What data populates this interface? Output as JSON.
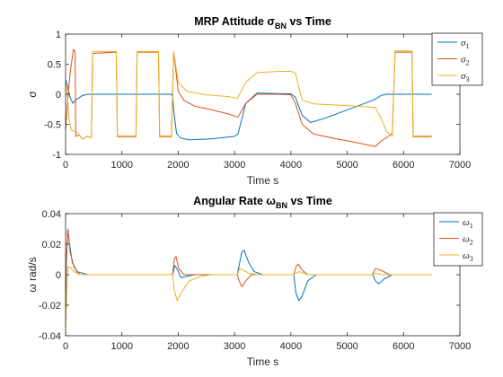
{
  "chart_data": [
    {
      "type": "line",
      "title": "MRP Attitude σ",
      "title_sub": "BN",
      "title_tail": " vs Time",
      "xlabel": "Time s",
      "ylabel": "σ",
      "xlim": [
        0,
        7000
      ],
      "ylim": [
        -1,
        1
      ],
      "xticks": [
        "0",
        "1000",
        "2000",
        "3000",
        "4000",
        "5000",
        "6000",
        "7000"
      ],
      "yticks": [
        "1",
        "0.5",
        "0",
        "-0.5",
        "-1"
      ],
      "ytick_values": [
        1,
        0.5,
        0,
        -0.5,
        -1
      ],
      "xtick_values": [
        0,
        1000,
        2000,
        3000,
        4000,
        5000,
        6000,
        7000
      ],
      "grid": false,
      "legend_position": "top-right-outside",
      "series": [
        {
          "name": "σ",
          "name_sub": "1",
          "color": "#0072BD",
          "points": [
            [
              0,
              0.25
            ],
            [
              40,
              0.12
            ],
            [
              80,
              -0.05
            ],
            [
              130,
              -0.15
            ],
            [
              200,
              -0.08
            ],
            [
              300,
              -0.02
            ],
            [
              400,
              0
            ],
            [
              1000,
              0
            ],
            [
              1880,
              0
            ],
            [
              1900,
              -0.05
            ],
            [
              1930,
              -0.35
            ],
            [
              1970,
              -0.65
            ],
            [
              2050,
              -0.73
            ],
            [
              2200,
              -0.76
            ],
            [
              2600,
              -0.74
            ],
            [
              3000,
              -0.7
            ],
            [
              3060,
              -0.66
            ],
            [
              3200,
              -0.15
            ],
            [
              3400,
              0.02
            ],
            [
              3800,
              0.01
            ],
            [
              4000,
              0.01
            ],
            [
              4080,
              -0.05
            ],
            [
              4200,
              -0.35
            ],
            [
              4350,
              -0.47
            ],
            [
              4600,
              -0.4
            ],
            [
              5000,
              -0.26
            ],
            [
              5400,
              -0.12
            ],
            [
              5500,
              -0.08
            ],
            [
              5600,
              -0.02
            ],
            [
              5700,
              0
            ],
            [
              6500,
              0
            ]
          ]
        },
        {
          "name": "σ",
          "name_sub": "2",
          "color": "#D95319",
          "points": [
            [
              0,
              -0.6
            ],
            [
              30,
              -0.2
            ],
            [
              80,
              0.35
            ],
            [
              140,
              0.75
            ],
            [
              170,
              0.7
            ],
            [
              180,
              -0.7
            ],
            [
              250,
              -0.68
            ],
            [
              300,
              -0.75
            ],
            [
              380,
              -0.7
            ],
            [
              460,
              -0.72
            ],
            [
              480,
              0.68
            ],
            [
              900,
              0.7
            ],
            [
              920,
              -0.7
            ],
            [
              1250,
              -0.7
            ],
            [
              1270,
              0.7
            ],
            [
              1650,
              0.7
            ],
            [
              1670,
              -0.7
            ],
            [
              1880,
              -0.7
            ],
            [
              1920,
              0.7
            ],
            [
              2000,
              0.05
            ],
            [
              2100,
              -0.1
            ],
            [
              2300,
              -0.2
            ],
            [
              2600,
              -0.26
            ],
            [
              2900,
              -0.33
            ],
            [
              3060,
              -0.38
            ],
            [
              3200,
              -0.15
            ],
            [
              3400,
              0
            ],
            [
              3800,
              0
            ],
            [
              4000,
              -0.01
            ],
            [
              4080,
              -0.15
            ],
            [
              4200,
              -0.5
            ],
            [
              4400,
              -0.66
            ],
            [
              4800,
              -0.74
            ],
            [
              5200,
              -0.81
            ],
            [
              5500,
              -0.87
            ],
            [
              5600,
              -0.78
            ],
            [
              5700,
              -0.72
            ],
            [
              5800,
              -0.65
            ],
            [
              5850,
              0.7
            ],
            [
              6150,
              0.7
            ],
            [
              6170,
              -0.7
            ],
            [
              6500,
              -0.7
            ]
          ]
        },
        {
          "name": "σ",
          "name_sub": "3",
          "color": "#EDB120",
          "points": [
            [
              0,
              0.2
            ],
            [
              30,
              0
            ],
            [
              60,
              -0.4
            ],
            [
              100,
              -0.6
            ],
            [
              180,
              -0.62
            ],
            [
              250,
              -0.68
            ],
            [
              300,
              -0.75
            ],
            [
              380,
              -0.7
            ],
            [
              460,
              -0.72
            ],
            [
              480,
              0.71
            ],
            [
              900,
              0.71
            ],
            [
              920,
              -0.71
            ],
            [
              1250,
              -0.71
            ],
            [
              1270,
              0.71
            ],
            [
              1650,
              0.71
            ],
            [
              1670,
              -0.71
            ],
            [
              1880,
              -0.71
            ],
            [
              1920,
              0.71
            ],
            [
              2000,
              0.2
            ],
            [
              2150,
              0.05
            ],
            [
              2500,
              -0.01
            ],
            [
              2900,
              -0.04
            ],
            [
              3050,
              -0.07
            ],
            [
              3200,
              0.2
            ],
            [
              3400,
              0.36
            ],
            [
              3800,
              0.38
            ],
            [
              4000,
              0.38
            ],
            [
              4080,
              0.35
            ],
            [
              4200,
              -0.1
            ],
            [
              4400,
              -0.16
            ],
            [
              4800,
              -0.18
            ],
            [
              5200,
              -0.2
            ],
            [
              5500,
              -0.22
            ],
            [
              5600,
              -0.4
            ],
            [
              5700,
              -0.62
            ],
            [
              5800,
              -0.7
            ],
            [
              5850,
              0.72
            ],
            [
              6150,
              0.72
            ],
            [
              6170,
              -0.71
            ],
            [
              6500,
              -0.71
            ]
          ]
        }
      ]
    },
    {
      "type": "line",
      "title": "Angular Rate ω",
      "title_sub": "BN",
      "title_tail": " vs Time",
      "xlabel": "Time s",
      "ylabel": "ω rad/s",
      "xlim": [
        0,
        7000
      ],
      "ylim": [
        -0.04,
        0.04
      ],
      "xticks": [
        "0",
        "1000",
        "2000",
        "3000",
        "4000",
        "5000",
        "6000",
        "7000"
      ],
      "yticks": [
        "0.04",
        "0.02",
        "0",
        "-0.02",
        "-0.04"
      ],
      "ytick_values": [
        0.04,
        0.02,
        0,
        -0.02,
        -0.04
      ],
      "xtick_values": [
        0,
        1000,
        2000,
        3000,
        4000,
        5000,
        6000,
        7000
      ],
      "grid": false,
      "legend_position": "top-right-outside",
      "series": [
        {
          "name": "ω",
          "name_sub": "1",
          "color": "#0072BD",
          "points": [
            [
              0,
              -0.02
            ],
            [
              15,
              0.008
            ],
            [
              40,
              0.03
            ],
            [
              70,
              0.02
            ],
            [
              120,
              0.008
            ],
            [
              200,
              0.002
            ],
            [
              400,
              0
            ],
            [
              1900,
              0
            ],
            [
              1940,
              0.006
            ],
            [
              1990,
              0.003
            ],
            [
              2050,
              -0.002
            ],
            [
              2150,
              -0.001
            ],
            [
              2300,
              0
            ],
            [
              3050,
              0
            ],
            [
              3080,
              0.006
            ],
            [
              3130,
              0.015
            ],
            [
              3170,
              0.016
            ],
            [
              3250,
              0.008
            ],
            [
              3350,
              0.002
            ],
            [
              3500,
              0
            ],
            [
              4050,
              0
            ],
            [
              4090,
              -0.012
            ],
            [
              4140,
              -0.017
            ],
            [
              4200,
              -0.014
            ],
            [
              4300,
              -0.004
            ],
            [
              4450,
              0
            ],
            [
              5450,
              0
            ],
            [
              5500,
              -0.004
            ],
            [
              5560,
              -0.006
            ],
            [
              5650,
              -0.003
            ],
            [
              5800,
              0
            ],
            [
              6500,
              0
            ]
          ]
        },
        {
          "name": "ω",
          "name_sub": "2",
          "color": "#D95319",
          "points": [
            [
              0,
              -0.01
            ],
            [
              15,
              0.012
            ],
            [
              40,
              0.03
            ],
            [
              80,
              0.015
            ],
            [
              150,
              0.005
            ],
            [
              250,
              0
            ],
            [
              1900,
              0
            ],
            [
              1930,
              0.01
            ],
            [
              1960,
              0.012
            ],
            [
              2010,
              0.004
            ],
            [
              2100,
              0
            ],
            [
              3050,
              0
            ],
            [
              3080,
              -0.004
            ],
            [
              3130,
              -0.008
            ],
            [
              3200,
              -0.004
            ],
            [
              3300,
              0
            ],
            [
              4050,
              0
            ],
            [
              4090,
              0.005
            ],
            [
              4130,
              0.007
            ],
            [
              4200,
              0.003
            ],
            [
              4300,
              0
            ],
            [
              5450,
              0
            ],
            [
              5500,
              0.004
            ],
            [
              5600,
              0.003
            ],
            [
              5750,
              0
            ],
            [
              6500,
              0
            ]
          ]
        },
        {
          "name": "ω",
          "name_sub": "3",
          "color": "#EDB120",
          "points": [
            [
              0,
              -0.035
            ],
            [
              15,
              -0.02
            ],
            [
              40,
              0.005
            ],
            [
              80,
              0.005
            ],
            [
              150,
              0.002
            ],
            [
              250,
              0
            ],
            [
              1900,
              0
            ],
            [
              1930,
              -0.01
            ],
            [
              1980,
              -0.017
            ],
            [
              2050,
              -0.012
            ],
            [
              2200,
              -0.004
            ],
            [
              2400,
              -0.001
            ],
            [
              2600,
              0
            ],
            [
              3050,
              0
            ],
            [
              3090,
              0.004
            ],
            [
              3150,
              0.003
            ],
            [
              3250,
              0.001
            ],
            [
              3400,
              0
            ],
            [
              4050,
              0
            ],
            [
              4090,
              0.001
            ],
            [
              4150,
              0.002
            ],
            [
              4300,
              0
            ],
            [
              5450,
              0
            ],
            [
              5500,
              0.001
            ],
            [
              5600,
              0
            ],
            [
              6500,
              0
            ]
          ]
        }
      ]
    }
  ]
}
